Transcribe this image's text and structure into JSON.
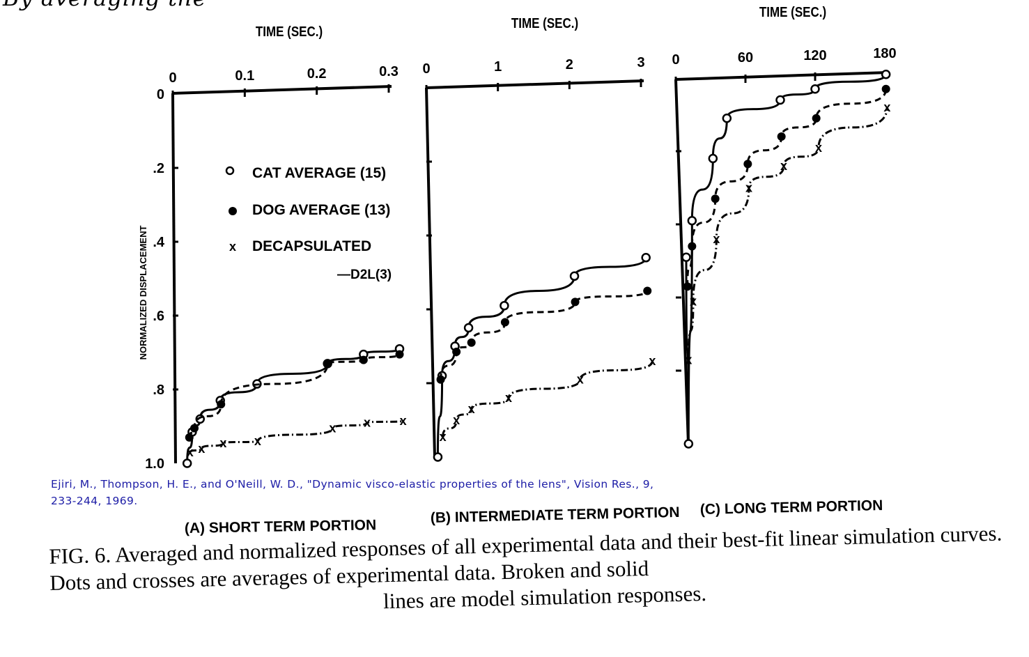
{
  "top_text": "By averaging the",
  "citation": {
    "line1": "Ejiri, M., Thompson, H. E., and O'Neill, W. D., \"Dynamic visco-elastic properties of the lens\", Vision Res., 9,",
    "line2": "233-244, 1969."
  },
  "caption": {
    "line1": "FIG. 6.  Averaged and normalized responses of all experimental data and their best-fit linear simulation curves.  Dots and crosses are averages of experimental data.  Broken and solid",
    "line2": "lines are model simulation responses."
  },
  "chart_data": [
    {
      "type": "line",
      "panel_label": "(A) SHORT TERM PORTION",
      "xlabel": "TIME (SEC.)",
      "ylabel": "NORMALIZED DISPLACEMENT",
      "xlim": [
        0,
        0.3
      ],
      "ylim": [
        0,
        1.0
      ],
      "y_inverted": true,
      "xticks": [
        "0",
        "0.1",
        "0.2",
        "0.3"
      ],
      "xtick_values": [
        0,
        0.1,
        0.2,
        0.3
      ],
      "yticks": [
        "0",
        ".2",
        ".4",
        ".6",
        ".8",
        "1.0"
      ],
      "ytick_values": [
        0,
        0.2,
        0.4,
        0.6,
        0.8,
        1.0
      ],
      "legend": {
        "placement": "center",
        "entries": [
          "CAT AVERAGE (15)",
          "DOG AVERAGE (13)",
          "DECAPSULATED"
        ],
        "note": "—D2L(3)"
      },
      "series": [
        {
          "name": "CAT AVERAGE (15)",
          "marker": "open-circle",
          "line": "solid",
          "x": [
            0.02,
            0.027,
            0.038,
            0.066,
            0.117,
            0.215,
            0.265,
            0.315
          ],
          "y": [
            1.0,
            0.915,
            0.88,
            0.83,
            0.785,
            0.73,
            0.705,
            0.69
          ]
        },
        {
          "name": "DOG AVERAGE (13)",
          "marker": "filled-circle",
          "line": "dashed",
          "x": [
            0.023,
            0.03,
            0.067,
            0.215,
            0.265,
            0.315
          ],
          "y": [
            0.93,
            0.905,
            0.84,
            0.73,
            0.72,
            0.705
          ]
        },
        {
          "name": "DECAPSULATED",
          "marker": "cross",
          "line": "dash-dot",
          "x": [
            0.024,
            0.04,
            0.07,
            0.118,
            0.222,
            0.27,
            0.32
          ],
          "y": [
            0.97,
            0.96,
            0.945,
            0.94,
            0.905,
            0.89,
            0.885
          ]
        }
      ]
    },
    {
      "type": "line",
      "panel_label": "(B) INTERMEDIATE TERM PORTION",
      "xlabel": "TIME (SEC.)",
      "xlim": [
        0,
        3
      ],
      "ylim": [
        0,
        1.0
      ],
      "y_inverted": true,
      "xticks": [
        "0",
        "1",
        "2",
        "3"
      ],
      "xtick_values": [
        0,
        1,
        2,
        3
      ],
      "series": [
        {
          "name": "CAT AVERAGE (15)",
          "marker": "open-circle",
          "line": "solid",
          "x": [
            0.16,
            0.22,
            0.4,
            0.59,
            1.09,
            2.07,
            3.07
          ],
          "y": [
            1.0,
            0.78,
            0.7,
            0.65,
            0.59,
            0.51,
            0.46
          ]
        },
        {
          "name": "DOG AVERAGE (13)",
          "marker": "filled-circle",
          "line": "dashed",
          "x": [
            0.2,
            0.42,
            0.63,
            1.1,
            2.08,
            3.09
          ],
          "y": [
            0.79,
            0.715,
            0.69,
            0.635,
            0.58,
            0.55
          ]
        },
        {
          "name": "DECAPSULATED",
          "marker": "cross",
          "line": "dash-dot",
          "x": [
            0.23,
            0.42,
            0.63,
            1.15,
            2.15,
            3.16
          ],
          "y": [
            0.945,
            0.9,
            0.87,
            0.84,
            0.79,
            0.74
          ]
        }
      ]
    },
    {
      "type": "line",
      "panel_label": "(C) LONG TERM PORTION",
      "xlabel": "TIME (SEC.)",
      "xlim": [
        0,
        180
      ],
      "ylim": [
        0,
        1.0
      ],
      "y_inverted": true,
      "xticks": [
        "0",
        "60",
        "120",
        "180"
      ],
      "xtick_values": [
        0,
        60,
        120,
        180
      ],
      "series": [
        {
          "name": "CAT AVERAGE (15)",
          "marker": "open-circle",
          "line": "solid",
          "x": [
            11,
            9,
            14,
            32,
            44,
            90,
            120,
            181
          ],
          "y": [
            1.0,
            0.49,
            0.39,
            0.22,
            0.11,
            0.06,
            0.03,
            -0.01
          ]
        },
        {
          "name": "DOG AVERAGE (13)",
          "marker": "filled-circle",
          "line": "dashed",
          "x": [
            10,
            14,
            34,
            62,
            91,
            121,
            181
          ],
          "y": [
            0.57,
            0.46,
            0.33,
            0.235,
            0.16,
            0.11,
            0.03
          ]
        },
        {
          "name": "DECAPSULATED",
          "marker": "cross",
          "line": "dash-dot",
          "x": [
            11,
            15,
            35,
            63,
            93,
            123,
            182
          ],
          "y": [
            0.77,
            0.61,
            0.44,
            0.3,
            0.24,
            0.19,
            0.08
          ]
        }
      ]
    }
  ]
}
